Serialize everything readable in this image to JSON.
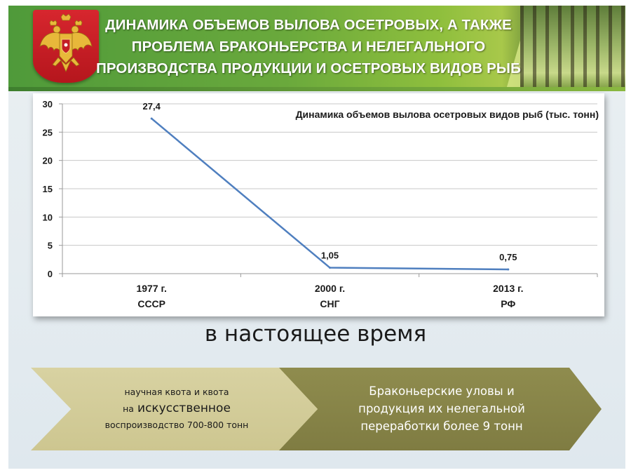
{
  "header": {
    "title": "ДИНАМИКА ОБЪЕМОВ ВЫЛОВА ОСЕТРОВЫХ, А ТАКЖЕ\nПРОБЛЕМА БРАКОНЬЕРСТВА И НЕЛЕГАЛЬНОГО\nПРОИЗВОДСТВА ПРОДУКЦИИ И ОСЕТРОВЫХ ВИДОВ РЫБ",
    "emblem_icon": "russian-coat-of-arms-icon",
    "colors": {
      "header_green": "#5aa03a",
      "emblem_red": "#c41e26"
    }
  },
  "chart_data": {
    "type": "line",
    "title": "Динамика объемов вылова осетровых видов рыб (тыс. тонн)",
    "categories": [
      [
        "1977 г.",
        "СССР"
      ],
      [
        "2000 г.",
        "СНГ"
      ],
      [
        "2013 г.",
        "РФ"
      ]
    ],
    "series": [
      {
        "values": [
          27.4,
          1.05,
          0.75
        ],
        "labels": [
          "27,4",
          "1,05",
          "0,75"
        ],
        "color": "#4f7fbf"
      }
    ],
    "yticks": [
      "0",
      "5",
      "10",
      "15",
      "20",
      "25",
      "30"
    ],
    "ylim": [
      0,
      30
    ],
    "grid": true,
    "legend": "none"
  },
  "caption": "в настоящее время",
  "arrows": {
    "left": {
      "line1": "научная квота и квота",
      "line2_prefix": "на",
      "line2_big": "искусственное",
      "line3": "воспроизводство 700-800 тонн",
      "color": "#d3cc98"
    },
    "right": {
      "line1": "Браконьерские уловы и",
      "line2": "продукция их нелегальной",
      "line3": "переработки более 9 тонн",
      "color": "#87844a"
    }
  }
}
